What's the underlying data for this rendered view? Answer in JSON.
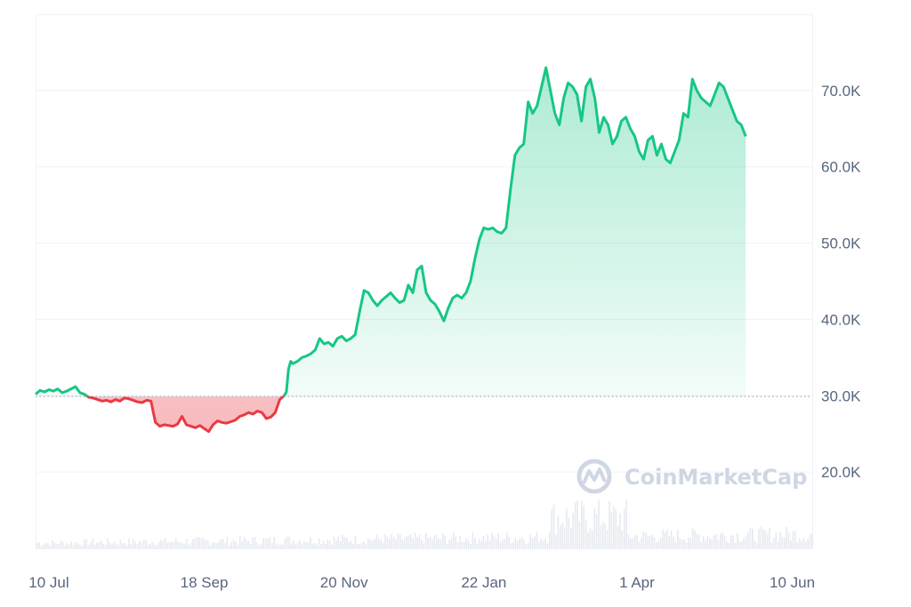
{
  "chart_data": {
    "type": "area",
    "baseline": 29900,
    "ylim": [
      10000,
      80000
    ],
    "y_ticks": [
      20000,
      30000,
      40000,
      50000,
      60000,
      70000
    ],
    "y_tick_labels": [
      "20.0K",
      "30.0K",
      "40.0K",
      "50.0K",
      "60.0K",
      "70.0K"
    ],
    "x_tick_labels": [
      "10 Jul",
      "18 Sep",
      "20 Nov",
      "22 Jan",
      "1 Apr",
      "10 Jun"
    ],
    "x_tick_days": [
      6,
      76,
      139,
      202,
      271,
      341
    ],
    "x_range_days": [
      0,
      350
    ],
    "series": [
      {
        "values": [
          [
            0,
            30200
          ],
          [
            2,
            30700
          ],
          [
            4,
            30500
          ],
          [
            6,
            30800
          ],
          [
            8,
            30600
          ],
          [
            10,
            30900
          ],
          [
            12,
            30400
          ],
          [
            14,
            30600
          ],
          [
            16,
            30900
          ],
          [
            18,
            31200
          ],
          [
            20,
            30400
          ],
          [
            22,
            30200
          ],
          [
            24,
            29800
          ],
          [
            26,
            29700
          ],
          [
            28,
            29500
          ],
          [
            30,
            29300
          ],
          [
            32,
            29400
          ],
          [
            34,
            29200
          ],
          [
            36,
            29500
          ],
          [
            38,
            29300
          ],
          [
            40,
            29700
          ],
          [
            42,
            29600
          ],
          [
            44,
            29400
          ],
          [
            46,
            29200
          ],
          [
            48,
            29100
          ],
          [
            50,
            29400
          ],
          [
            52,
            29300
          ],
          [
            54,
            26500
          ],
          [
            56,
            26000
          ],
          [
            58,
            26200
          ],
          [
            60,
            26100
          ],
          [
            62,
            26000
          ],
          [
            64,
            26300
          ],
          [
            66,
            27300
          ],
          [
            68,
            26200
          ],
          [
            70,
            26000
          ],
          [
            72,
            25800
          ],
          [
            74,
            26100
          ],
          [
            76,
            25700
          ],
          [
            78,
            25300
          ],
          [
            80,
            26200
          ],
          [
            82,
            26700
          ],
          [
            84,
            26500
          ],
          [
            86,
            26400
          ],
          [
            88,
            26600
          ],
          [
            90,
            26800
          ],
          [
            92,
            27300
          ],
          [
            94,
            27500
          ],
          [
            96,
            27800
          ],
          [
            98,
            27600
          ],
          [
            100,
            28000
          ],
          [
            102,
            27800
          ],
          [
            104,
            27000
          ],
          [
            106,
            27200
          ],
          [
            108,
            27800
          ],
          [
            110,
            29500
          ],
          [
            112,
            30000
          ],
          [
            113,
            30500
          ],
          [
            114,
            33500
          ],
          [
            115,
            34500
          ],
          [
            116,
            34200
          ],
          [
            118,
            34500
          ],
          [
            120,
            35000
          ],
          [
            122,
            35200
          ],
          [
            124,
            35500
          ],
          [
            126,
            36000
          ],
          [
            128,
            37500
          ],
          [
            130,
            36800
          ],
          [
            132,
            37000
          ],
          [
            134,
            36500
          ],
          [
            136,
            37500
          ],
          [
            138,
            37800
          ],
          [
            140,
            37200
          ],
          [
            142,
            37500
          ],
          [
            144,
            38000
          ],
          [
            146,
            41000
          ],
          [
            148,
            43800
          ],
          [
            150,
            43500
          ],
          [
            152,
            42500
          ],
          [
            154,
            41800
          ],
          [
            156,
            42500
          ],
          [
            158,
            43000
          ],
          [
            160,
            43500
          ],
          [
            162,
            42800
          ],
          [
            164,
            42200
          ],
          [
            166,
            42500
          ],
          [
            168,
            44500
          ],
          [
            170,
            43500
          ],
          [
            172,
            46500
          ],
          [
            174,
            47000
          ],
          [
            176,
            43500
          ],
          [
            178,
            42500
          ],
          [
            180,
            42000
          ],
          [
            182,
            41000
          ],
          [
            184,
            39800
          ],
          [
            186,
            41500
          ],
          [
            188,
            42800
          ],
          [
            190,
            43200
          ],
          [
            192,
            42800
          ],
          [
            194,
            43500
          ],
          [
            196,
            45000
          ],
          [
            198,
            48000
          ],
          [
            200,
            50500
          ],
          [
            202,
            52000
          ],
          [
            204,
            51800
          ],
          [
            206,
            52000
          ],
          [
            208,
            51500
          ],
          [
            210,
            51300
          ],
          [
            212,
            52000
          ],
          [
            214,
            57000
          ],
          [
            216,
            61500
          ],
          [
            218,
            62500
          ],
          [
            220,
            63000
          ],
          [
            222,
            68500
          ],
          [
            224,
            67000
          ],
          [
            226,
            68000
          ],
          [
            228,
            70500
          ],
          [
            230,
            73000
          ],
          [
            232,
            70000
          ],
          [
            234,
            67000
          ],
          [
            236,
            65500
          ],
          [
            238,
            69000
          ],
          [
            240,
            71000
          ],
          [
            242,
            70500
          ],
          [
            244,
            69500
          ],
          [
            246,
            66000
          ],
          [
            248,
            70500
          ],
          [
            250,
            71500
          ],
          [
            252,
            69000
          ],
          [
            254,
            64500
          ],
          [
            256,
            66500
          ],
          [
            258,
            65500
          ],
          [
            260,
            63000
          ],
          [
            262,
            64000
          ],
          [
            264,
            66000
          ],
          [
            266,
            66500
          ],
          [
            268,
            65000
          ],
          [
            270,
            64000
          ],
          [
            272,
            62000
          ],
          [
            274,
            61000
          ],
          [
            276,
            63500
          ],
          [
            278,
            64000
          ],
          [
            280,
            61500
          ],
          [
            282,
            63000
          ],
          [
            284,
            61000
          ],
          [
            286,
            60500
          ],
          [
            288,
            62000
          ],
          [
            290,
            63500
          ],
          [
            292,
            67000
          ],
          [
            294,
            66500
          ],
          [
            296,
            71500
          ],
          [
            298,
            70000
          ],
          [
            300,
            69000
          ],
          [
            302,
            68500
          ],
          [
            304,
            68000
          ],
          [
            306,
            69500
          ],
          [
            308,
            71000
          ],
          [
            310,
            70500
          ],
          [
            312,
            69000
          ],
          [
            314,
            67500
          ],
          [
            316,
            66000
          ],
          [
            318,
            65500
          ],
          [
            320,
            64000
          ]
        ]
      }
    ],
    "line_up_color": "#16c784",
    "line_down_color": "#ea3943",
    "grid": true,
    "watermark": "CoinMarketCap"
  }
}
